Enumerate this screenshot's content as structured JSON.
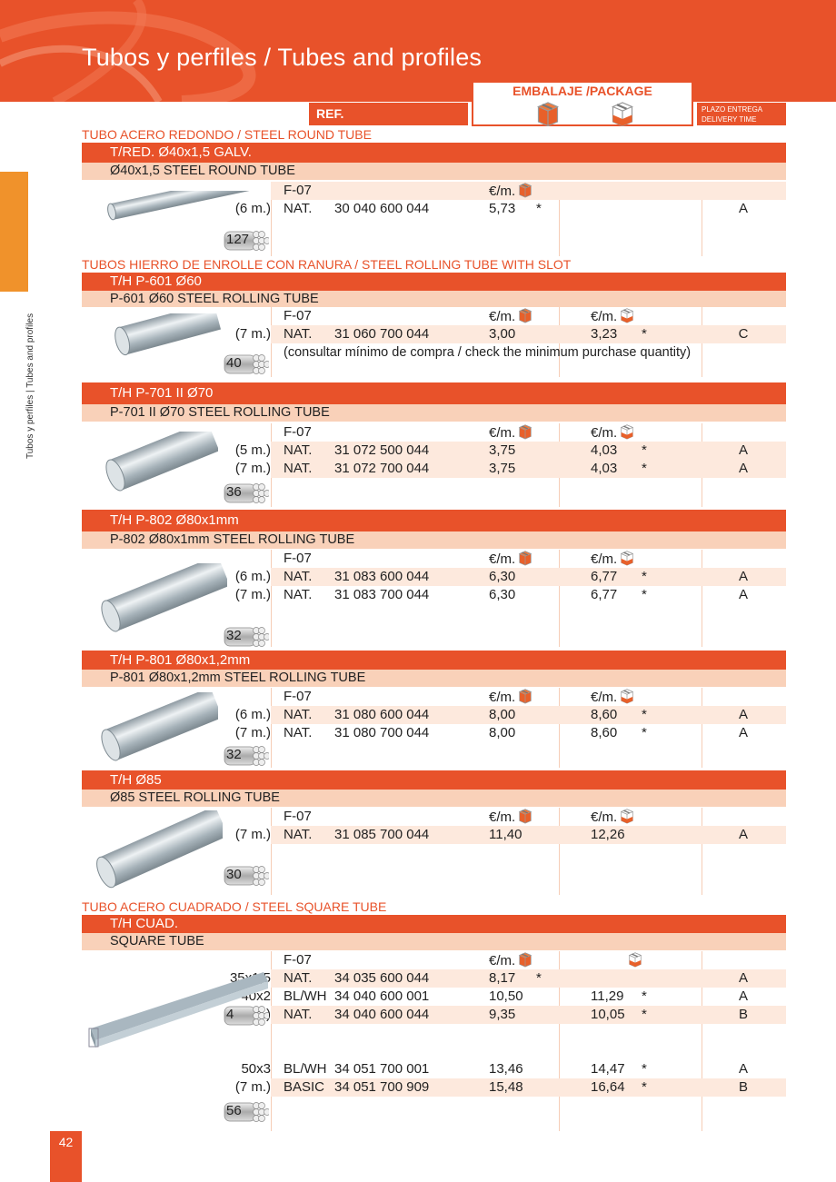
{
  "header": {
    "title": "Tubos y perfiles / Tubes and profiles",
    "ref_label": "REF.",
    "package_label": "EMBALAJE /PACKAGE",
    "delivery_label_1": "PLAZO ENTREGA",
    "delivery_label_2": "DELIVERY TIME"
  },
  "sidebar": {
    "label": "Tubos y perfiles | Tubes and profiles"
  },
  "page_number": "42",
  "colors": {
    "accent": "#e8522a",
    "light": "#f9d1b9",
    "row_shade": "#fde9dd",
    "side_tab": "#f0922b"
  },
  "icons": {
    "package_orange": "box-orange-icon",
    "package_white": "box-white-icon",
    "bundle": "tube-bundle-icon"
  },
  "sections": [
    {
      "category": "TUBO ACERO REDONDO / STEEL ROUND TUBE",
      "title": "T/RED. Ø40x1,5 GALV.",
      "subtitle": "Ø40x1,5 STEEL ROUND TUBE",
      "finish_header": "F-07",
      "price1_header": "€/m.",
      "price2_header": "",
      "bundle": "127",
      "image": "round-tube",
      "rows": [
        {
          "length": "(6 m.)",
          "finish": "NAT.",
          "ref": "30 040 600 044",
          "price1": "5,73",
          "star1": "*",
          "price2": "",
          "star2": "",
          "delivery": "A"
        }
      ]
    },
    {
      "category": "TUBOS HIERRO DE ENROLLE CON RANURA / STEEL ROLLING TUBE WITH SLOT",
      "title": "T/H P-601 Ø60",
      "subtitle": "P-601 Ø60 STEEL ROLLING TUBE",
      "finish_header": "F-07",
      "price1_header": "€/m.",
      "price2_header": "€/m.",
      "bundle": "40",
      "image": "rolling-tube",
      "rows": [
        {
          "length": "(7 m.)",
          "finish": "NAT.",
          "ref": "31 060 700 044",
          "price1": "3,00",
          "star1": "",
          "price2": "3,23",
          "star2": "*",
          "delivery": "C"
        }
      ],
      "note": "(consultar mínimo de compra  / check the minimum purchase quantity)"
    },
    {
      "category": "",
      "title": "T/H P-701 II Ø70",
      "subtitle": "P-701 II Ø70 STEEL ROLLING TUBE",
      "finish_header": "F-07",
      "price1_header": "€/m.",
      "price2_header": "€/m.",
      "bundle": "36",
      "image": "rolling-tube",
      "rows": [
        {
          "length": "(5 m.)",
          "finish": "NAT.",
          "ref": "31 072 500 044",
          "price1": "3,75",
          "star1": "",
          "price2": "4,03",
          "star2": "*",
          "delivery": "A"
        },
        {
          "length": "(7 m.)",
          "finish": "NAT.",
          "ref": "31 072 700 044",
          "price1": "3,75",
          "star1": "",
          "price2": "4,03",
          "star2": "*",
          "delivery": "A"
        }
      ]
    },
    {
      "category": "",
      "title": "T/H P-802 Ø80x1mm",
      "subtitle": "P-802 Ø80x1mm STEEL ROLLING TUBE",
      "finish_header": "F-07",
      "price1_header": "€/m.",
      "price2_header": "€/m.",
      "bundle": "32",
      "image": "rolling-tube",
      "rows": [
        {
          "length": "(6 m.)",
          "finish": "NAT.",
          "ref": "31 083 600 044",
          "price1": "6,30",
          "star1": "",
          "price2": "6,77",
          "star2": "*",
          "delivery": "A"
        },
        {
          "length": "(7 m.)",
          "finish": "NAT.",
          "ref": "31 083 700 044",
          "price1": "6,30",
          "star1": "",
          "price2": "6,77",
          "star2": "*",
          "delivery": "A"
        }
      ]
    },
    {
      "category": "",
      "title": "T/H P-801 Ø80x1,2mm",
      "subtitle": "P-801 Ø80x1,2mm STEEL ROLLING TUBE",
      "finish_header": "F-07",
      "price1_header": "€/m.",
      "price2_header": "€/m.",
      "bundle": "32",
      "image": "rolling-tube",
      "rows": [
        {
          "length": "(6 m.)",
          "finish": "NAT.",
          "ref": "31 080 600 044",
          "price1": "8,00",
          "star1": "",
          "price2": "8,60",
          "star2": "*",
          "delivery": "A"
        },
        {
          "length": "(7 m.)",
          "finish": "NAT.",
          "ref": "31 080 700 044",
          "price1": "8,00",
          "star1": "",
          "price2": "8,60",
          "star2": "*",
          "delivery": "A"
        }
      ]
    },
    {
      "category": "",
      "title": "T/H Ø85",
      "subtitle": "Ø85 STEEL ROLLING TUBE",
      "finish_header": "F-07",
      "price1_header": "€/m.",
      "price2_header": "€/m.",
      "bundle": "30",
      "image": "rolling-tube",
      "rows": [
        {
          "length": "(7 m.)",
          "finish": "NAT.",
          "ref": "31 085 700 044",
          "price1": "11,40",
          "star1": "",
          "price2": "12,26",
          "star2": "",
          "delivery": "A"
        }
      ]
    },
    {
      "category": "TUBO ACERO CUADRADO / STEEL SQUARE TUBE",
      "title": "T/H CUAD.",
      "subtitle": "SQUARE TUBE",
      "finish_header": "F-07",
      "price1_header": "€/m.",
      "price2_header": "",
      "bundle": "4",
      "bundle2": "56",
      "image": "square-tube",
      "rows": [
        {
          "length": "35x1,5",
          "finish": "NAT.",
          "ref": "34 035 600 044",
          "price1": "8,17",
          "star1": "*",
          "price2": "",
          "star2": "",
          "delivery": "A"
        },
        {
          "length": "40x2",
          "finish": "BL/WH",
          "ref": "34 040 600 001",
          "price1": "10,50",
          "star1": "",
          "price2": "11,29",
          "star2": "*",
          "delivery": "A"
        },
        {
          "length": "(6 m.)",
          "finish": "NAT.",
          "ref": "34 040 600 044",
          "price1": "9,35",
          "star1": "",
          "price2": "10,05",
          "star2": "*",
          "delivery": "B"
        },
        {
          "length": "50x3",
          "finish": "BL/WH",
          "ref": "34 051 700 001",
          "price1": "13,46",
          "star1": "",
          "price2": "14,47",
          "star2": "*",
          "delivery": "A"
        },
        {
          "length": "(7 m.)",
          "finish": "BASIC",
          "ref": "34 051 700 909",
          "price1": "15,48",
          "star1": "",
          "price2": "16,64",
          "star2": "*",
          "delivery": "B"
        }
      ]
    }
  ]
}
